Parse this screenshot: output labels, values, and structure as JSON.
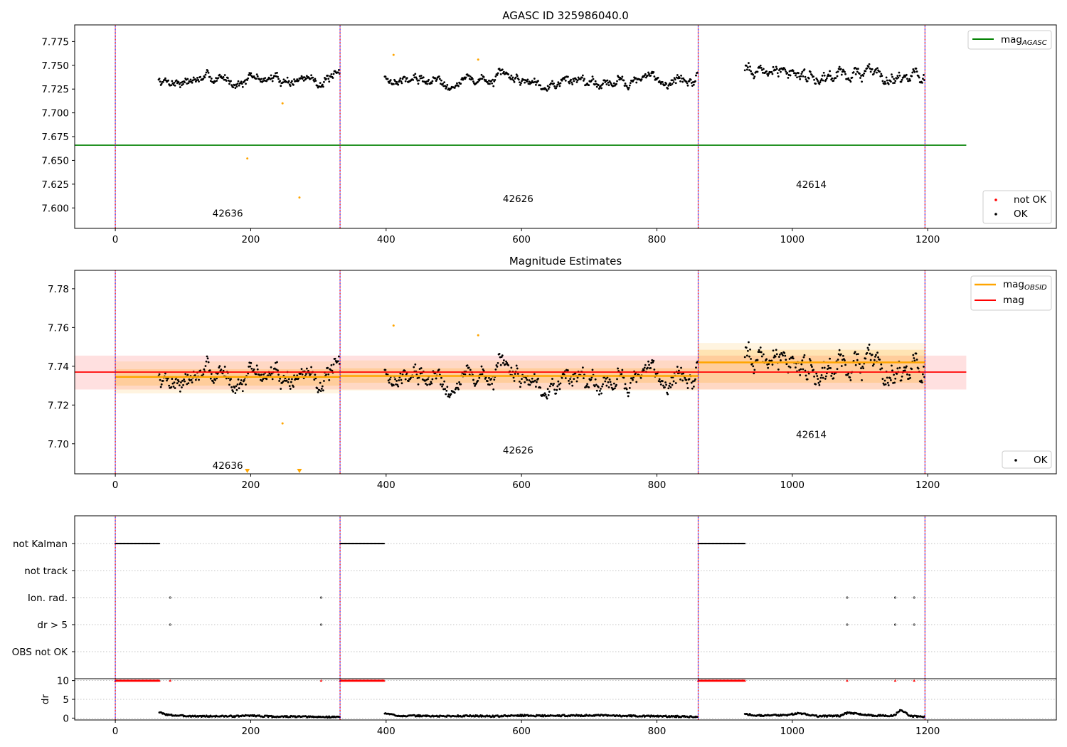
{
  "chart_data": [
    {
      "type": "scatter",
      "title": "AGASC ID 325986040.0",
      "xlabel": "",
      "ylabel": "",
      "xlim": [
        -60,
        1390
      ],
      "ylim": [
        7.5785,
        7.7925
      ],
      "xticks": [
        0,
        200,
        400,
        600,
        800,
        1000,
        1200
      ],
      "xtick_labels": [
        "0",
        "200",
        "400",
        "600",
        "800",
        "1000",
        "1200"
      ],
      "yticks": [
        7.6,
        7.625,
        7.65,
        7.675,
        7.7,
        7.725,
        7.75,
        7.775
      ],
      "ytick_labels": [
        "7.600",
        "7.625",
        "7.650",
        "7.675",
        "7.700",
        "7.725",
        "7.750",
        "7.775"
      ],
      "obs_boundaries": [
        0,
        332,
        861,
        1196
      ],
      "obsid_labels": [
        {
          "text": "42636",
          "x": 166,
          "y": 7.591
        },
        {
          "text": "42626",
          "x": 595,
          "y": 7.606
        },
        {
          "text": "42614",
          "x": 1028,
          "y": 7.621
        }
      ],
      "mag_agasc": {
        "name": "mag_AGASC",
        "value": 7.666,
        "x_range": [
          0,
          1257
        ],
        "color": "#008000"
      },
      "ok_segments": [
        {
          "x_range": [
            64,
            332
          ],
          "center": 7.735,
          "amplitude": 0.011
        },
        {
          "x_range": [
            398,
            861
          ],
          "center": 7.735,
          "amplitude": 0.012
        },
        {
          "x_range": [
            930,
            1196
          ],
          "center": 7.742,
          "amplitude": 0.015
        }
      ],
      "not_ok_points": [
        {
          "x": 411,
          "y": 7.761
        },
        {
          "x": 536,
          "y": 7.756
        },
        {
          "x": 247,
          "y": 7.71
        },
        {
          "x": 195,
          "y": 7.652
        },
        {
          "x": 272,
          "y": 7.611
        }
      ],
      "legend_top": {
        "placement": "top-right",
        "entries": [
          {
            "label": "mag",
            "subscript": "AGASC",
            "color": "#008000"
          }
        ]
      },
      "legend_bottom": {
        "placement": "bottom-right",
        "entries": [
          {
            "label": "not OK",
            "color": "#ff0000"
          },
          {
            "label": "OK",
            "color": "#000000"
          }
        ]
      }
    },
    {
      "type": "scatter",
      "title": "Magnitude Estimates",
      "xlabel": "",
      "ylabel": "",
      "xlim": [
        -60,
        1390
      ],
      "ylim": [
        7.6845,
        7.7895
      ],
      "xticks": [
        0,
        200,
        400,
        600,
        800,
        1000,
        1200
      ],
      "xtick_labels": [
        "0",
        "200",
        "400",
        "600",
        "800",
        "1000",
        "1200"
      ],
      "yticks": [
        7.7,
        7.72,
        7.74,
        7.76,
        7.78
      ],
      "ytick_labels": [
        "7.70",
        "7.72",
        "7.74",
        "7.76",
        "7.78"
      ],
      "obs_boundaries": [
        0,
        332,
        861,
        1196
      ],
      "obsid_labels": [
        {
          "text": "42636",
          "x": 166,
          "y": 7.687
        },
        {
          "text": "42626",
          "x": 595,
          "y": 7.695
        },
        {
          "text": "42614",
          "x": 1028,
          "y": 7.703
        }
      ],
      "mag": {
        "name": "mag",
        "value": 7.737,
        "band": [
          7.728,
          7.7455
        ],
        "x_range": [
          -60,
          1257
        ],
        "color": "#ff0000"
      },
      "mag_obsid": [
        {
          "x_range": [
            0,
            332
          ],
          "value": 7.7345,
          "band_inner": [
            7.73,
            7.7385
          ],
          "band_outer": [
            7.726,
            7.7425
          ]
        },
        {
          "x_range": [
            332,
            861
          ],
          "value": 7.735,
          "band_inner": [
            7.7315,
            7.739
          ],
          "band_outer": [
            7.7275,
            7.743
          ]
        },
        {
          "x_range": [
            861,
            1196
          ],
          "value": 7.742,
          "band_inner": [
            7.7315,
            7.7485
          ],
          "band_outer": [
            7.728,
            7.752
          ]
        }
      ],
      "mag_obsid_color": "#ffa500",
      "ok_segments": [
        {
          "x_range": [
            64,
            332
          ],
          "center": 7.735,
          "amplitude": 0.011
        },
        {
          "x_range": [
            398,
            861
          ],
          "center": 7.735,
          "amplitude": 0.012
        },
        {
          "x_range": [
            930,
            1196
          ],
          "center": 7.742,
          "amplitude": 0.015
        }
      ],
      "not_ok_points": [
        {
          "x": 411,
          "y": 7.761
        },
        {
          "x": 536,
          "y": 7.756
        },
        {
          "x": 247,
          "y": 7.7105
        }
      ],
      "below_range_markers": [
        {
          "x": 195
        },
        {
          "x": 272
        }
      ],
      "legend_top": {
        "placement": "top-right",
        "entries": [
          {
            "label": "mag",
            "subscript": "OBSID",
            "color": "#ffa500"
          },
          {
            "label": "mag",
            "subscript": "",
            "color": "#ff0000"
          }
        ]
      },
      "legend_bottom": {
        "placement": "bottom-right",
        "entries": [
          {
            "label": "OK",
            "color": "#000000"
          }
        ]
      }
    },
    {
      "type": "scatter",
      "title": "",
      "xlim": [
        -60,
        1390
      ],
      "xticks": [
        0,
        200,
        400,
        600,
        800,
        1000,
        1200
      ],
      "xtick_labels": [
        "0",
        "200",
        "400",
        "600",
        "800",
        "1000",
        "1200"
      ],
      "obs_boundaries": [
        0,
        332,
        861,
        1196
      ],
      "flag_rows": [
        "not Kalman",
        "not track",
        "Ion. rad.",
        "dr > 5",
        "OBS not OK"
      ],
      "flags": {
        "not Kalman": [
          [
            0,
            65
          ],
          [
            332,
            398
          ],
          [
            861,
            930
          ]
        ],
        "not track": [],
        "Ion. rad.": [
          81,
          304,
          1081,
          1152,
          1180
        ],
        "dr > 5": [
          81,
          304,
          1081,
          1152,
          1180
        ],
        "OBS not OK": []
      },
      "dr": {
        "ylabel": "dr",
        "ylim": [
          -0.5,
          10.5
        ],
        "yticks": [
          0,
          5,
          10
        ],
        "ytick_labels": [
          "0",
          "5",
          "10"
        ],
        "capped_value": 10,
        "capped_segments": [
          [
            0,
            65
          ],
          [
            332,
            398
          ],
          [
            861,
            930
          ]
        ],
        "capped_points": [
          81,
          304,
          1081,
          1152,
          1180
        ],
        "points": [
          {
            "x": 65,
            "y": 1.6
          },
          {
            "x": 70,
            "y": 1.2
          },
          {
            "x": 75,
            "y": 1.0
          },
          {
            "x": 80,
            "y": 0.8
          },
          {
            "x": 90,
            "y": 0.7
          },
          {
            "x": 100,
            "y": 0.6
          },
          {
            "x": 120,
            "y": 0.5
          },
          {
            "x": 150,
            "y": 0.5
          },
          {
            "x": 180,
            "y": 0.5
          },
          {
            "x": 200,
            "y": 0.7
          },
          {
            "x": 230,
            "y": 0.4
          },
          {
            "x": 260,
            "y": 0.4
          },
          {
            "x": 300,
            "y": 0.3
          },
          {
            "x": 330,
            "y": 0.3
          },
          {
            "x": 398,
            "y": 1.3
          },
          {
            "x": 402,
            "y": 1.1
          },
          {
            "x": 410,
            "y": 0.9
          },
          {
            "x": 420,
            "y": 0.6
          },
          {
            "x": 450,
            "y": 0.6
          },
          {
            "x": 480,
            "y": 0.5
          },
          {
            "x": 520,
            "y": 0.6
          },
          {
            "x": 560,
            "y": 0.5
          },
          {
            "x": 600,
            "y": 0.7
          },
          {
            "x": 640,
            "y": 0.6
          },
          {
            "x": 680,
            "y": 0.7
          },
          {
            "x": 720,
            "y": 0.7
          },
          {
            "x": 760,
            "y": 0.6
          },
          {
            "x": 800,
            "y": 0.5
          },
          {
            "x": 840,
            "y": 0.4
          },
          {
            "x": 860,
            "y": 0.4
          },
          {
            "x": 930,
            "y": 1.2
          },
          {
            "x": 940,
            "y": 0.8
          },
          {
            "x": 960,
            "y": 0.7
          },
          {
            "x": 990,
            "y": 0.8
          },
          {
            "x": 1010,
            "y": 1.3
          },
          {
            "x": 1040,
            "y": 0.5
          },
          {
            "x": 1070,
            "y": 0.6
          },
          {
            "x": 1083,
            "y": 1.5
          },
          {
            "x": 1100,
            "y": 1.0
          },
          {
            "x": 1120,
            "y": 0.7
          },
          {
            "x": 1150,
            "y": 0.6
          },
          {
            "x": 1160,
            "y": 2.2
          },
          {
            "x": 1175,
            "y": 0.5
          },
          {
            "x": 1195,
            "y": 0.4
          }
        ]
      }
    }
  ]
}
